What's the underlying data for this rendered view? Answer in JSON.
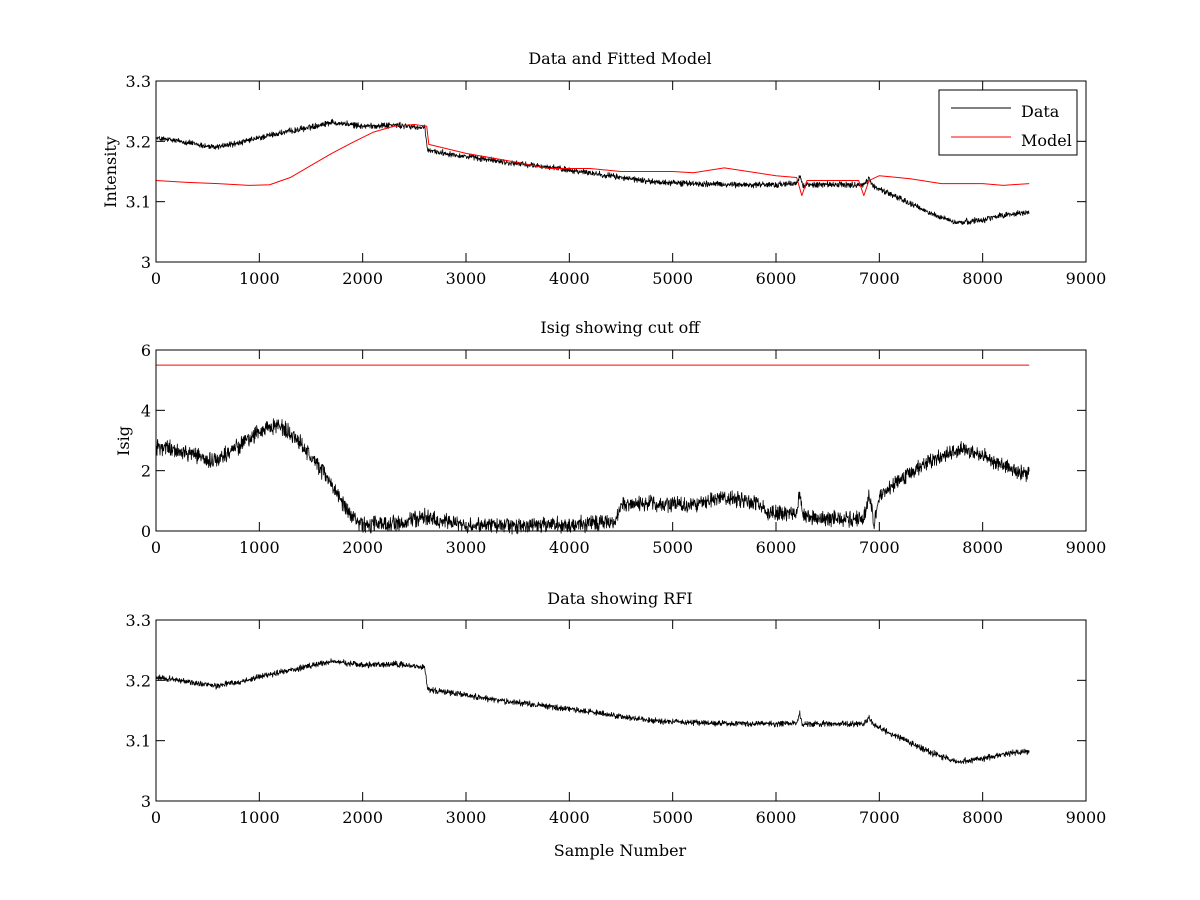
{
  "figure": {
    "background": "#ffffff",
    "axis_color": "#000000",
    "data_color": "#000000",
    "model_color": "#ff0000"
  },
  "chart_data": [
    {
      "type": "line",
      "title": "Data and Fitted Model",
      "xlabel": "",
      "ylabel": "Intensity",
      "xlim": [
        0,
        9000
      ],
      "ylim": [
        3,
        3.3
      ],
      "xticks": [
        0,
        1000,
        2000,
        3000,
        4000,
        5000,
        6000,
        7000,
        8000,
        9000
      ],
      "yticks": [
        3,
        3.1,
        3.2,
        3.3
      ],
      "grid": false,
      "legend": "top-right",
      "series": [
        {
          "name": "Data",
          "color": "#000000",
          "noise": 0.006,
          "x": [
            0,
            250,
            550,
            800,
            1100,
            1400,
            1700,
            2000,
            2300,
            2600,
            2630,
            3000,
            3400,
            3800,
            4200,
            4500,
            4800,
            5200,
            5600,
            6000,
            6200,
            6230,
            6260,
            6300,
            6600,
            6850,
            6900,
            6950,
            7200,
            7500,
            7750,
            8000,
            8200,
            8450
          ],
          "y": [
            3.205,
            3.2,
            3.19,
            3.197,
            3.21,
            3.22,
            3.232,
            3.225,
            3.227,
            3.222,
            3.185,
            3.175,
            3.165,
            3.157,
            3.148,
            3.14,
            3.133,
            3.13,
            3.128,
            3.128,
            3.13,
            3.145,
            3.125,
            3.128,
            3.128,
            3.128,
            3.138,
            3.125,
            3.105,
            3.08,
            3.065,
            3.07,
            3.078,
            3.082
          ]
        },
        {
          "name": "Model",
          "color": "#ff0000",
          "noise": 0,
          "x": [
            0,
            300,
            600,
            900,
            1100,
            1300,
            1500,
            1700,
            1900,
            2100,
            2300,
            2500,
            2620,
            2640,
            3000,
            3500,
            3800,
            4200,
            4500,
            5000,
            5200,
            5500,
            6000,
            6200,
            6250,
            6300,
            6600,
            6800,
            6850,
            6900,
            7000,
            7300,
            7600,
            8000,
            8200,
            8450
          ],
          "y": [
            3.135,
            3.132,
            3.13,
            3.127,
            3.128,
            3.14,
            3.16,
            3.18,
            3.198,
            3.215,
            3.225,
            3.228,
            3.225,
            3.195,
            3.18,
            3.165,
            3.155,
            3.155,
            3.15,
            3.15,
            3.148,
            3.156,
            3.143,
            3.14,
            3.11,
            3.135,
            3.135,
            3.135,
            3.11,
            3.135,
            3.143,
            3.138,
            3.13,
            3.13,
            3.127,
            3.13
          ]
        }
      ]
    },
    {
      "type": "line",
      "title": "Isig showing cut off",
      "xlabel": "",
      "ylabel": "Isig",
      "xlim": [
        0,
        9000
      ],
      "ylim": [
        0,
        6
      ],
      "xticks": [
        0,
        1000,
        2000,
        3000,
        4000,
        5000,
        6000,
        7000,
        8000,
        9000
      ],
      "yticks": [
        0,
        2,
        4,
        6
      ],
      "grid": false,
      "series": [
        {
          "color": "#000000",
          "noise": 0.32,
          "x": [
            0,
            300,
            550,
            800,
            1050,
            1200,
            1400,
            1650,
            1850,
            2000,
            2300,
            2600,
            3000,
            3500,
            4000,
            4450,
            4500,
            4800,
            5200,
            5500,
            5800,
            5950,
            6200,
            6230,
            6260,
            6500,
            6850,
            6900,
            6950,
            7000,
            7300,
            7600,
            7800,
            8000,
            8300,
            8450
          ],
          "y": [
            2.8,
            2.6,
            2.3,
            2.8,
            3.4,
            3.5,
            2.9,
            1.8,
            0.7,
            0.2,
            0.25,
            0.45,
            0.2,
            0.2,
            0.2,
            0.3,
            0.85,
            0.9,
            0.85,
            1.15,
            0.95,
            0.6,
            0.6,
            1.3,
            0.5,
            0.4,
            0.4,
            1.3,
            0.2,
            1.2,
            1.9,
            2.5,
            2.7,
            2.5,
            2.0,
            1.9
          ]
        },
        {
          "color": "#ff0000",
          "noise": 0,
          "x": [
            0,
            8450
          ],
          "y": [
            5.5,
            5.5
          ]
        }
      ]
    },
    {
      "type": "line",
      "title": "Data showing RFI",
      "xlabel": "Sample Number",
      "ylabel": "",
      "xlim": [
        0,
        9000
      ],
      "ylim": [
        3,
        3.3
      ],
      "xticks": [
        0,
        1000,
        2000,
        3000,
        4000,
        5000,
        6000,
        7000,
        8000,
        9000
      ],
      "yticks": [
        3,
        3.1,
        3.2,
        3.3
      ],
      "grid": false,
      "series": [
        {
          "color": "#000000",
          "noise": 0.006,
          "x": [
            0,
            250,
            550,
            800,
            1100,
            1400,
            1700,
            2000,
            2300,
            2600,
            2630,
            3000,
            3400,
            3800,
            4200,
            4500,
            4800,
            5200,
            5600,
            6000,
            6200,
            6230,
            6260,
            6300,
            6600,
            6850,
            6900,
            6950,
            7200,
            7500,
            7750,
            8000,
            8200,
            8450
          ],
          "y": [
            3.205,
            3.2,
            3.19,
            3.197,
            3.21,
            3.22,
            3.232,
            3.225,
            3.227,
            3.222,
            3.185,
            3.175,
            3.165,
            3.157,
            3.148,
            3.14,
            3.133,
            3.13,
            3.128,
            3.128,
            3.13,
            3.145,
            3.125,
            3.128,
            3.128,
            3.128,
            3.138,
            3.125,
            3.105,
            3.08,
            3.065,
            3.07,
            3.078,
            3.082
          ]
        }
      ]
    }
  ]
}
